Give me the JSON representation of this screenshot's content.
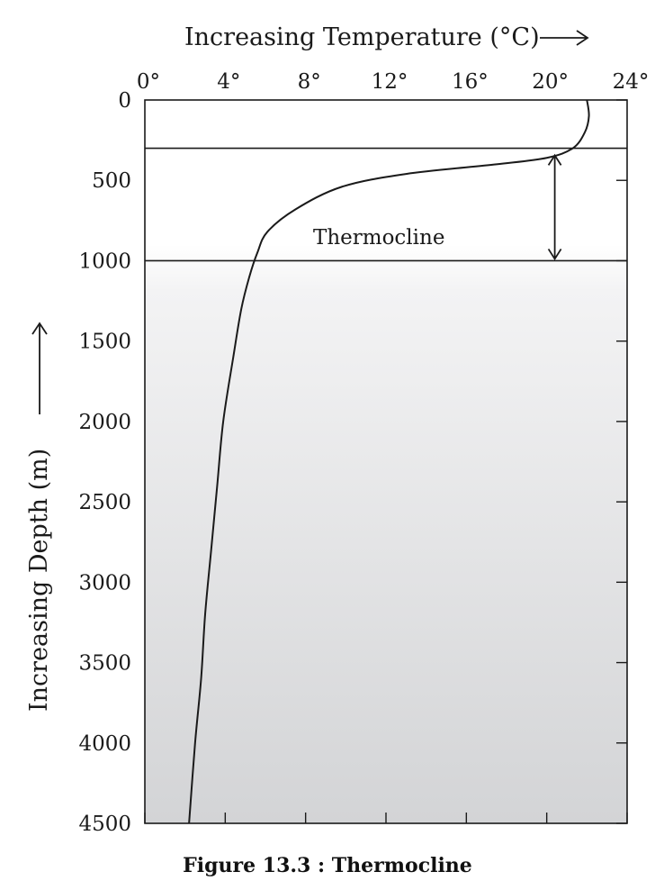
{
  "figure": {
    "caption": "Figure 13.3 : Thermocline"
  },
  "colors": {
    "line": "#1a1a1a",
    "surface_shade": "#ffffff",
    "deep_shade": "#d3d4d6"
  },
  "chart_data": {
    "type": "line",
    "xlabel": "Increasing Temperature (°C)",
    "ylabel": "Increasing Depth (m)",
    "xlim": [
      0,
      24
    ],
    "ylim": [
      0,
      4500
    ],
    "y_inverted": true,
    "x_axis_position": "top",
    "grid": false,
    "x_ticks": [
      0,
      4,
      8,
      12,
      16,
      20,
      24
    ],
    "x_tick_labels": [
      "0°",
      "4°",
      "8°",
      "12°",
      "16°",
      "20°",
      "24°"
    ],
    "y_ticks": [
      0,
      500,
      1000,
      1500,
      2000,
      2500,
      3000,
      3500,
      4000,
      4500
    ],
    "y_tick_labels": [
      "0",
      "500",
      "1000",
      "1500",
      "2000",
      "2500",
      "3000",
      "3500",
      "4000",
      "4500"
    ],
    "series": [
      {
        "x": [
          22.0,
          22.1,
          21.9,
          21.3,
          20.0,
          17.5,
          13.0,
          9.8,
          7.5,
          6.1,
          5.6,
          5.2,
          4.8,
          4.4,
          3.9,
          3.6,
          3.3,
          3.0,
          2.8,
          2.5,
          2.2
        ],
        "y": [
          0,
          100,
          200,
          300,
          360,
          400,
          460,
          540,
          680,
          820,
          950,
          1100,
          1300,
          1600,
          2000,
          2400,
          2800,
          3200,
          3600,
          4000,
          4500
        ]
      }
    ],
    "reference_lines": [
      {
        "axis": "y",
        "value": 300
      },
      {
        "axis": "y",
        "value": 1000
      }
    ],
    "annotations": [
      {
        "text": "Thermocline",
        "arrow": {
          "x": 20.4,
          "y_from": 400,
          "y_to": 1000
        }
      }
    ]
  }
}
